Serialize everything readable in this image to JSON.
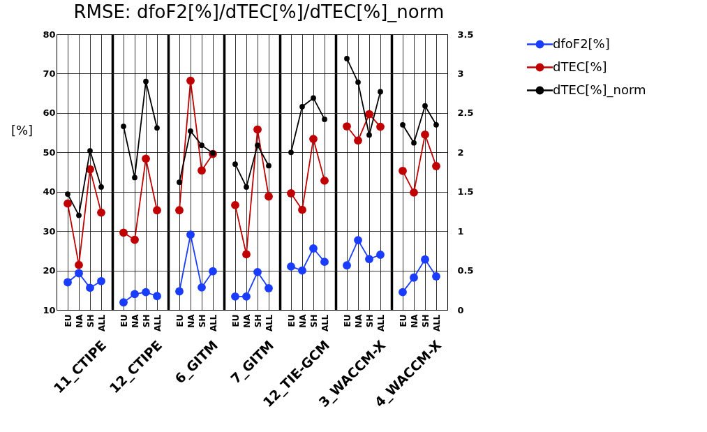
{
  "chart_data": {
    "type": "line",
    "title": "RMSE: dfoF2[%]/dTEC[%]/dTEC[%]_norm",
    "ylabel": "[%]",
    "categories": [
      "EU",
      "NA",
      "SH",
      "ALL",
      null,
      "EU",
      "NA",
      "SH",
      "ALL",
      null,
      "EU",
      "NA",
      "SH",
      "ALL",
      null,
      "EU",
      "NA",
      "SH",
      "ALL",
      null,
      "EU",
      "NA",
      "SH",
      "ALL",
      null,
      "EU",
      "NA",
      "SH",
      "ALL",
      null,
      "EU",
      "NA",
      "SH",
      "ALL"
    ],
    "series": [
      {
        "name": "dfoF2[%]",
        "color": "#1a3cff",
        "values": [
          17.0,
          19.3,
          15.6,
          17.3,
          null,
          11.9,
          14.0,
          14.5,
          13.5,
          null,
          14.7,
          29.1,
          15.7,
          19.8,
          null,
          13.4,
          13.4,
          19.6,
          15.5,
          null,
          21.0,
          20.0,
          25.6,
          22.2,
          null,
          21.3,
          27.7,
          22.9,
          24.0,
          null,
          14.5,
          18.2,
          22.8,
          18.5
        ]
      },
      {
        "name": "dTEC[%]",
        "color": "#c00000",
        "values": [
          37.0,
          21.4,
          45.7,
          34.7,
          null,
          29.6,
          27.8,
          48.4,
          35.3,
          null,
          35.3,
          68.2,
          45.4,
          49.6,
          null,
          36.6,
          24.1,
          55.8,
          38.8,
          null,
          39.6,
          35.4,
          53.4,
          42.8,
          null,
          56.6,
          53.0,
          59.7,
          56.5,
          null,
          45.3,
          39.8,
          54.5,
          46.5
        ]
      },
      {
        "name": "dTEC[%]_norm",
        "color": "#000000",
        "axis": "y2",
        "values": [
          1.47,
          1.2,
          2.02,
          1.56,
          null,
          2.33,
          1.68,
          2.9,
          2.31,
          null,
          1.62,
          2.27,
          2.09,
          1.99,
          null,
          1.85,
          1.56,
          2.09,
          1.83,
          null,
          2.0,
          2.58,
          2.69,
          2.42,
          null,
          3.19,
          2.89,
          2.22,
          2.77,
          null,
          2.35,
          2.12,
          2.59,
          2.35
        ]
      }
    ],
    "ylim": [
      10,
      80
    ],
    "yticks": [
      10,
      20,
      30,
      40,
      50,
      60,
      70,
      80
    ],
    "y2lim": [
      0,
      3.5
    ],
    "y2ticks": [
      0,
      0.5,
      1,
      1.5,
      2,
      2.5,
      3,
      3.5
    ],
    "annotations": [
      "11_CTIPE",
      "12_CTIPE",
      "6_GITM",
      "7_GITM",
      "12_TIE-GCM",
      "3_WACCM-X",
      "4_WACCM-X"
    ],
    "grid": true,
    "marker": "circle",
    "line_style": "solid",
    "legend": "right"
  }
}
